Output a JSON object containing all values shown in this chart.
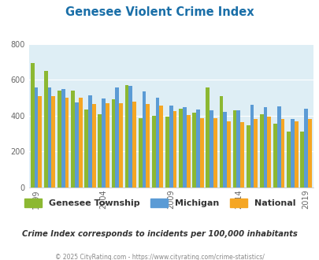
{
  "title": "Genesee Violent Crime Index",
  "subtitle": "Crime Index corresponds to incidents per 100,000 inhabitants",
  "footer": "© 2025 CityRating.com - https://www.cityrating.com/crime-statistics/",
  "years": [
    1999,
    2000,
    2001,
    2002,
    2003,
    2004,
    2005,
    2006,
    2007,
    2008,
    2009,
    2010,
    2011,
    2012,
    2013,
    2014,
    2015,
    2016,
    2017,
    2018,
    2019
  ],
  "genesee": [
    695,
    650,
    540,
    540,
    435,
    407,
    490,
    570,
    387,
    400,
    395,
    440,
    415,
    560,
    510,
    430,
    345,
    408,
    355,
    310,
    310
  ],
  "michigan": [
    558,
    558,
    548,
    475,
    515,
    497,
    560,
    567,
    537,
    502,
    455,
    450,
    435,
    430,
    420,
    430,
    460,
    447,
    452,
    383,
    438
  ],
  "national": [
    508,
    508,
    500,
    500,
    467,
    468,
    470,
    477,
    466,
    458,
    424,
    405,
    386,
    387,
    368,
    366,
    383,
    397,
    383,
    368,
    383
  ],
  "genesee_color": "#8cb832",
  "michigan_color": "#5b9bd5",
  "national_color": "#f5a623",
  "bg_color": "#deeef5",
  "ylim": [
    0,
    800
  ],
  "yticks": [
    0,
    200,
    400,
    600,
    800
  ],
  "xtick_years": [
    1999,
    2004,
    2009,
    2014,
    2019
  ],
  "title_color": "#1a6fa8",
  "subtitle_color": "#333333",
  "footer_color": "#888888"
}
